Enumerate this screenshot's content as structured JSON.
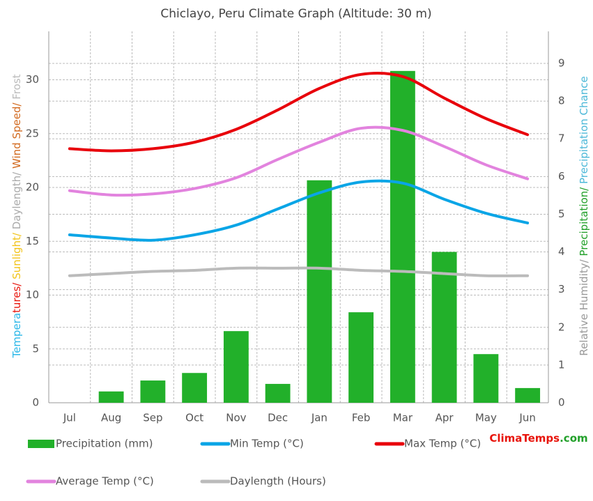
{
  "chart_data": {
    "type": "bar-line",
    "title": "Chiclayo, Peru Climate Graph (Altitude: 30 m)",
    "categories": [
      "Jul",
      "Aug",
      "Sep",
      "Oct",
      "Nov",
      "Dec",
      "Jan",
      "Feb",
      "Mar",
      "Apr",
      "May",
      "Jun"
    ],
    "ylim": [
      0,
      34.5
    ],
    "yticks": [
      0,
      5,
      10,
      15,
      20,
      25,
      30
    ],
    "y2lim": [
      0,
      9.85
    ],
    "y2ticks": [
      0,
      1,
      2,
      3,
      4,
      5,
      6,
      7,
      8,
      9
    ],
    "grid": true,
    "ylabel_parts": [
      {
        "text": "Tempera",
        "color": "#2ab7e8"
      },
      {
        "text": "tures/",
        "color": "#e8140b"
      },
      {
        "text": " Sunlight/",
        "color": "#f2c318"
      },
      {
        "text": " Daylength/",
        "color": "#aaaaaa"
      },
      {
        "text": " Wind Speed/",
        "color": "#d2691e"
      },
      {
        "text": " Frost",
        "color": "#bbbbbb"
      }
    ],
    "y2label_parts": [
      {
        "text": "Relative Humidity/",
        "color": "#999999"
      },
      {
        "text": " Precipitation/",
        "color": "#22a02a"
      },
      {
        "text": " Precipitation Chance",
        "color": "#4cb8d8"
      }
    ],
    "series": [
      {
        "name": "Precipitation (mm)",
        "type": "bar",
        "axis": "y2",
        "color": "#22b02a",
        "values": [
          0,
          0.3,
          0.59,
          0.79,
          1.9,
          0.5,
          5.9,
          2.4,
          8.8,
          4.0,
          1.29,
          0.39
        ]
      },
      {
        "name": "Min Temp (°C)",
        "type": "line",
        "color": "#0aa5e6",
        "values": [
          15.6,
          15.3,
          15.1,
          15.6,
          16.5,
          18.0,
          19.5,
          20.5,
          20.4,
          18.9,
          17.6,
          16.7
        ]
      },
      {
        "name": "Max Temp (°C)",
        "type": "line",
        "color": "#e8000b",
        "values": [
          23.6,
          23.4,
          23.6,
          24.2,
          25.4,
          27.2,
          29.2,
          30.5,
          30.3,
          28.3,
          26.4,
          24.9
        ]
      },
      {
        "name": "Average Temp (°C)",
        "type": "line",
        "color": "#e283de",
        "values": [
          19.7,
          19.3,
          19.4,
          19.9,
          20.9,
          22.6,
          24.2,
          25.5,
          25.3,
          23.8,
          22.1,
          20.8
        ]
      },
      {
        "name": "Daylength (Hours)",
        "type": "line",
        "color": "#bbbbbb",
        "values": [
          11.8,
          12.0,
          12.2,
          12.3,
          12.5,
          12.5,
          12.5,
          12.3,
          12.2,
          12.0,
          11.8,
          11.8
        ]
      }
    ],
    "logo_parts": [
      {
        "text": "ClimaTemps",
        "color": "#e8140b"
      },
      {
        "text": ".com",
        "color": "#22a02a"
      }
    ]
  }
}
